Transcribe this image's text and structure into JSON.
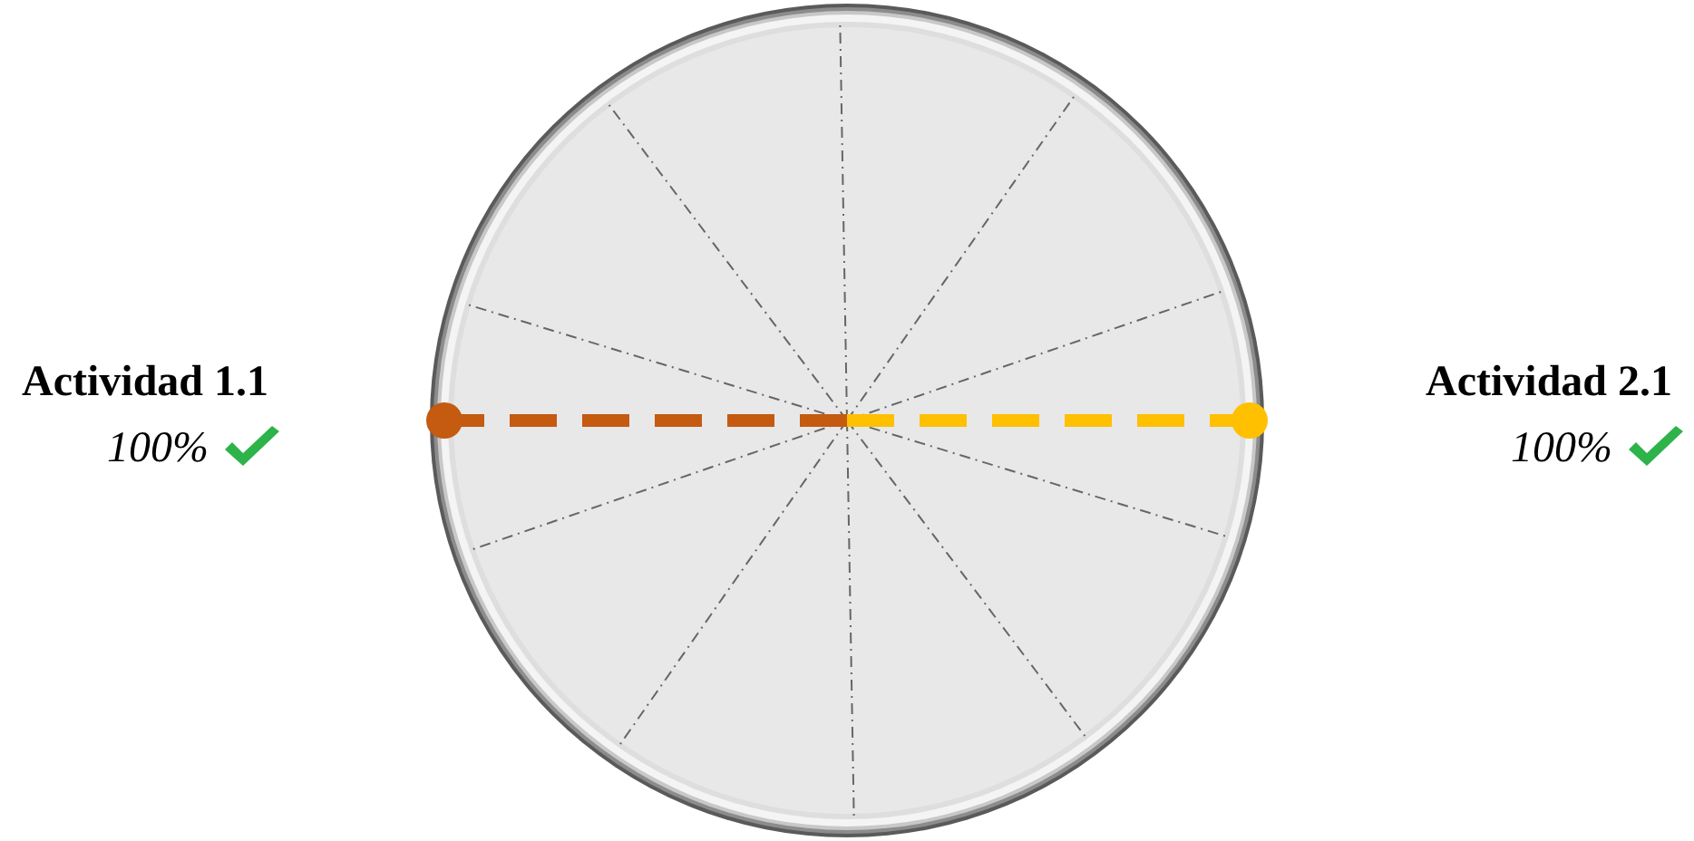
{
  "chart_data": {
    "type": "other",
    "categories": [
      "Actividad 2.1",
      "Actividad 1.1"
    ],
    "values": [
      100,
      100
    ],
    "value_labels": [
      "100%",
      "100%"
    ],
    "colors": [
      "#ffc000",
      "#c55a11"
    ]
  }
}
